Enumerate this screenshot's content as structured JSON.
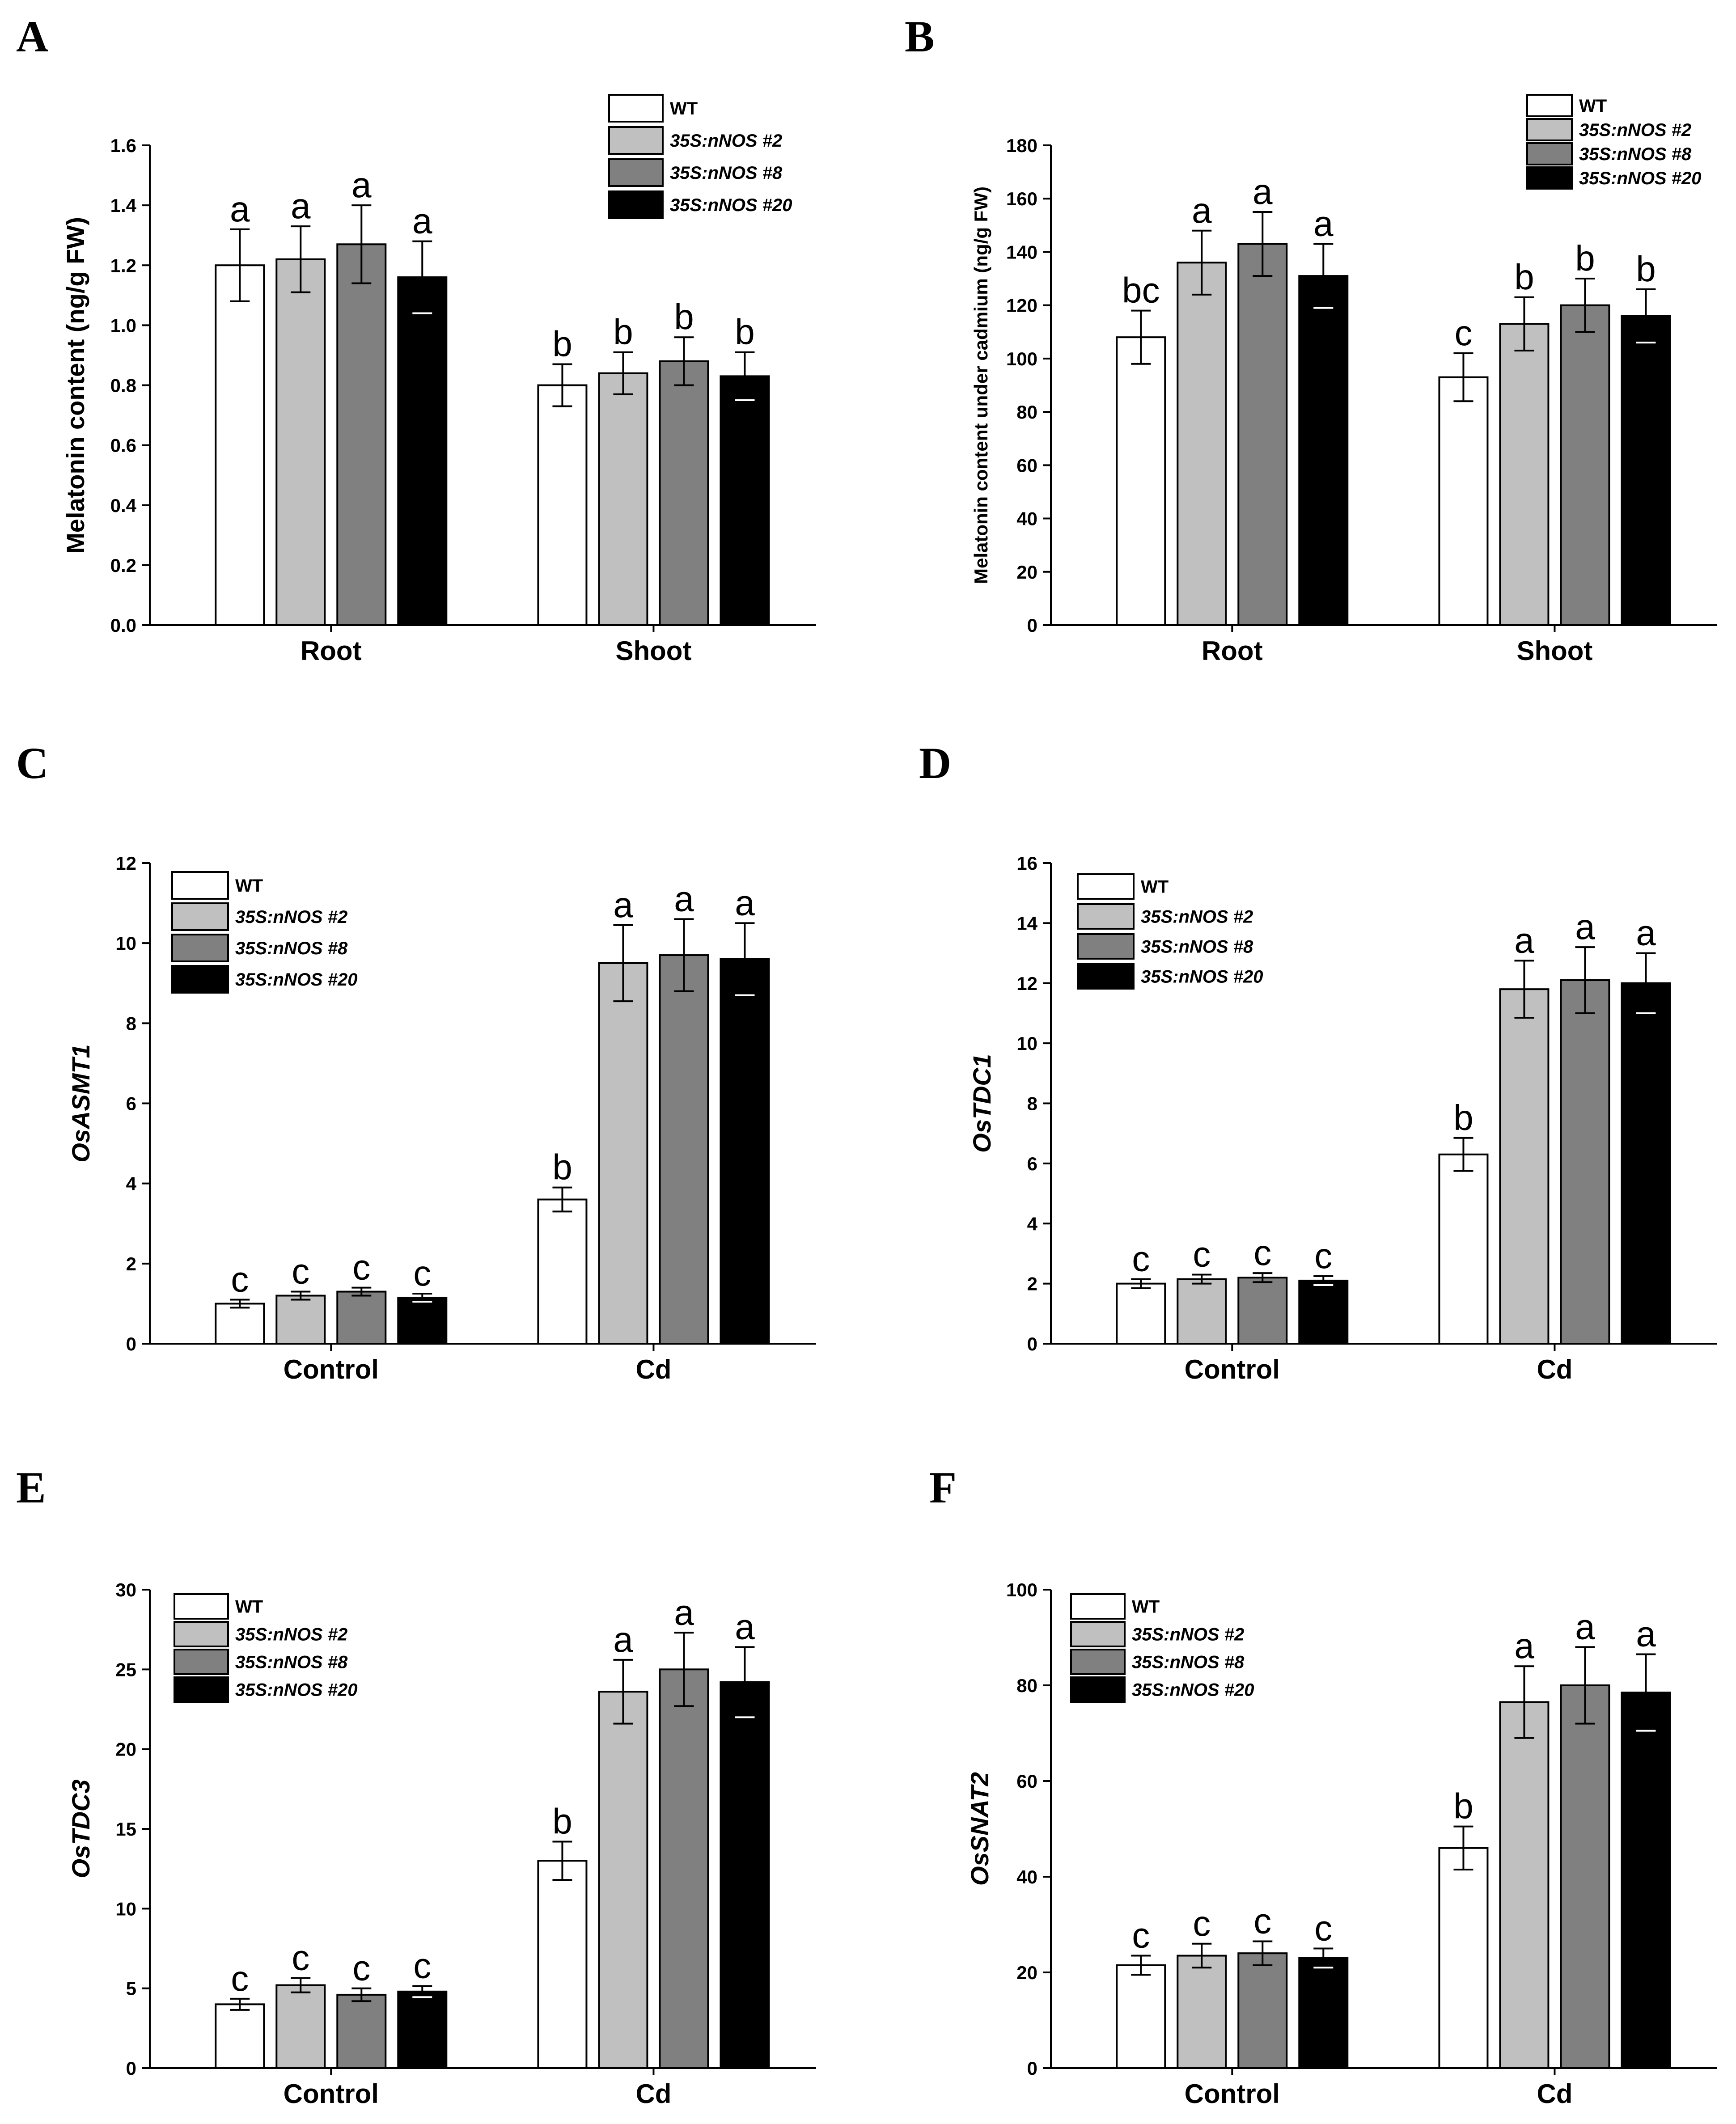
{
  "series_names": [
    "WT",
    "35S:nNOS #2",
    "35S:nNOS #8",
    "35S:nNOS #20"
  ],
  "series_colors": [
    "#ffffff",
    "#c0c0c0",
    "#808080",
    "#000000"
  ],
  "chart_data": [
    {
      "panel": "A",
      "type": "bar",
      "ylabel": "Melatonin content (ng/g FW)",
      "categories": [
        "Root",
        "Shoot"
      ],
      "ylim": [
        0,
        1.6
      ],
      "yticks": [
        "0.0",
        "0.2",
        "0.4",
        "0.6",
        "0.8",
        "1.0",
        "1.2",
        "1.4",
        "1.6"
      ],
      "legend": [
        "WT",
        "35S:nNOS #2",
        "35S:nNOS #8",
        "35S:nNOS #20"
      ],
      "series": [
        {
          "name": "WT",
          "values": [
            1.2,
            0.8
          ],
          "errors": [
            0.12,
            0.07
          ],
          "labels": [
            "a",
            "b"
          ]
        },
        {
          "name": "35S:nNOS #2",
          "values": [
            1.22,
            0.84
          ],
          "errors": [
            0.11,
            0.07
          ],
          "labels": [
            "a",
            "b"
          ]
        },
        {
          "name": "35S:nNOS #8",
          "values": [
            1.27,
            0.88
          ],
          "errors": [
            0.13,
            0.08
          ],
          "labels": [
            "a",
            "b"
          ]
        },
        {
          "name": "35S:nNOS #20",
          "values": [
            1.16,
            0.83
          ],
          "errors": [
            0.12,
            0.08
          ],
          "labels": [
            "a",
            "b"
          ]
        }
      ]
    },
    {
      "panel": "B",
      "type": "bar",
      "ylabel": "Melatonin content under cadmium (ng/g FW)",
      "categories": [
        "Root",
        "Shoot"
      ],
      "ylim": [
        0,
        180
      ],
      "yticks": [
        "0",
        "20",
        "40",
        "60",
        "80",
        "100",
        "120",
        "140",
        "160",
        "180"
      ],
      "legend": [
        "WT",
        "35S:nNOS #2",
        "35S:nNOS #8",
        "35S:nNOS #20"
      ],
      "series": [
        {
          "name": "WT",
          "values": [
            108,
            93
          ],
          "errors": [
            10,
            9
          ],
          "labels": [
            "bc",
            "c"
          ]
        },
        {
          "name": "35S:nNOS #2",
          "values": [
            136,
            113
          ],
          "errors": [
            12,
            10
          ],
          "labels": [
            "a",
            "b"
          ]
        },
        {
          "name": "35S:nNOS #8",
          "values": [
            143,
            120
          ],
          "errors": [
            12,
            10
          ],
          "labels": [
            "a",
            "b"
          ]
        },
        {
          "name": "35S:nNOS #20",
          "values": [
            131,
            116
          ],
          "errors": [
            12,
            10
          ],
          "labels": [
            "a",
            "b"
          ]
        }
      ]
    },
    {
      "panel": "C",
      "type": "bar",
      "ylabel": "OsASMT1",
      "categories": [
        "Control",
        "Cd"
      ],
      "ylim": [
        0,
        12
      ],
      "yticks": [
        "0",
        "2",
        "4",
        "6",
        "8",
        "10",
        "12"
      ],
      "legend": [
        "WT",
        "35S:nNOS #2",
        "35S:nNOS #8",
        "35S:nNOS #20"
      ],
      "series": [
        {
          "name": "WT",
          "values": [
            1.0,
            3.6
          ],
          "errors": [
            0.1,
            0.3
          ],
          "labels": [
            "c",
            "b"
          ]
        },
        {
          "name": "35S:nNOS #2",
          "values": [
            1.2,
            9.5
          ],
          "errors": [
            0.1,
            0.95
          ],
          "labels": [
            "c",
            "a"
          ]
        },
        {
          "name": "35S:nNOS #8",
          "values": [
            1.3,
            9.7
          ],
          "errors": [
            0.1,
            0.9
          ],
          "labels": [
            "c",
            "a"
          ]
        },
        {
          "name": "35S:nNOS #20",
          "values": [
            1.15,
            9.6
          ],
          "errors": [
            0.1,
            0.9
          ],
          "labels": [
            "c",
            "a"
          ]
        }
      ]
    },
    {
      "panel": "D",
      "type": "bar",
      "ylabel": "OsTDC1",
      "categories": [
        "Control",
        "Cd"
      ],
      "ylim": [
        0,
        16
      ],
      "yticks": [
        "0",
        "2",
        "4",
        "6",
        "8",
        "10",
        "12",
        "14",
        "16"
      ],
      "legend": [
        "WT",
        "35S:nNOS #2",
        "35S:nNOS #8",
        "35S:nNOS #20"
      ],
      "series": [
        {
          "name": "WT",
          "values": [
            2.0,
            6.3
          ],
          "errors": [
            0.15,
            0.55
          ],
          "labels": [
            "c",
            "b"
          ]
        },
        {
          "name": "35S:nNOS #2",
          "values": [
            2.15,
            11.8
          ],
          "errors": [
            0.15,
            0.95
          ],
          "labels": [
            "c",
            "a"
          ]
        },
        {
          "name": "35S:nNOS #8",
          "values": [
            2.2,
            12.1
          ],
          "errors": [
            0.15,
            1.1
          ],
          "labels": [
            "c",
            "a"
          ]
        },
        {
          "name": "35S:nNOS #20",
          "values": [
            2.1,
            12.0
          ],
          "errors": [
            0.15,
            1.0
          ],
          "labels": [
            "c",
            "a"
          ]
        }
      ]
    },
    {
      "panel": "E",
      "type": "bar",
      "ylabel": "OsTDC3",
      "categories": [
        "Control",
        "Cd"
      ],
      "ylim": [
        0,
        30
      ],
      "yticks": [
        "0",
        "5",
        "10",
        "15",
        "20",
        "25",
        "30"
      ],
      "legend": [
        "WT",
        "35S:nNOS #2",
        "35S:nNOS #8",
        "35S:nNOS #20"
      ],
      "series": [
        {
          "name": "WT",
          "values": [
            4.0,
            13.0
          ],
          "errors": [
            0.35,
            1.2
          ],
          "labels": [
            "c",
            "b"
          ]
        },
        {
          "name": "35S:nNOS #2",
          "values": [
            5.2,
            23.6
          ],
          "errors": [
            0.45,
            2.0
          ],
          "labels": [
            "c",
            "a"
          ]
        },
        {
          "name": "35S:nNOS #8",
          "values": [
            4.6,
            25.0
          ],
          "errors": [
            0.4,
            2.3
          ],
          "labels": [
            "c",
            "a"
          ]
        },
        {
          "name": "35S:nNOS #20",
          "values": [
            4.8,
            24.2
          ],
          "errors": [
            0.35,
            2.2
          ],
          "labels": [
            "c",
            "a"
          ]
        }
      ]
    },
    {
      "panel": "F",
      "type": "bar",
      "ylabel": "OsSNAT2",
      "categories": [
        "Control",
        "Cd"
      ],
      "ylim": [
        0,
        100
      ],
      "yticks": [
        "0",
        "20",
        "40",
        "60",
        "80",
        "100"
      ],
      "legend": [
        "WT",
        "35S:nNOS #2",
        "35S:nNOS #8",
        "35S:nNOS #20"
      ],
      "series": [
        {
          "name": "WT",
          "values": [
            21.5,
            46.0
          ],
          "errors": [
            2.0,
            4.5
          ],
          "labels": [
            "c",
            "b"
          ]
        },
        {
          "name": "35S:nNOS #2",
          "values": [
            23.5,
            76.5
          ],
          "errors": [
            2.5,
            7.5
          ],
          "labels": [
            "c",
            "a"
          ]
        },
        {
          "name": "35S:nNOS #8",
          "values": [
            24.0,
            80.0
          ],
          "errors": [
            2.5,
            8.0
          ],
          "labels": [
            "c",
            "a"
          ]
        },
        {
          "name": "35S:nNOS #20",
          "values": [
            23.0,
            78.5
          ],
          "errors": [
            2.0,
            8.0
          ],
          "labels": [
            "c",
            "a"
          ]
        }
      ]
    }
  ]
}
